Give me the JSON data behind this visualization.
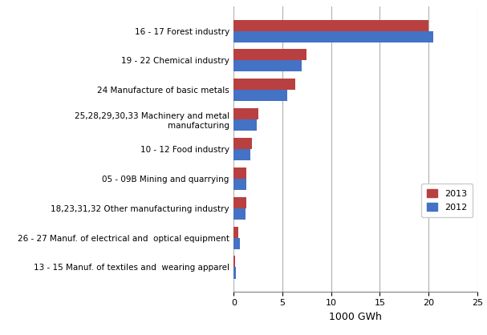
{
  "categories": [
    "16 - 17 Forest industry",
    "19 - 22 Chemical industry",
    "24 Manufacture of basic metals",
    "25,28,29,30,33 Machinery and metal\nmanufacturing",
    "10 - 12 Food industry",
    "05 - 09B Mining and quarrying",
    "18,23,31,32 Other manufacturing industry",
    "26 - 27 Manuf. of electrical and  optical equipment",
    "13 - 15 Manuf. of textiles and  wearing apparel"
  ],
  "values_2013": [
    20.0,
    7.5,
    6.3,
    2.5,
    1.9,
    1.3,
    1.3,
    0.5,
    0.15
  ],
  "values_2012": [
    20.5,
    7.0,
    5.5,
    2.4,
    1.7,
    1.3,
    1.2,
    0.6,
    0.2
  ],
  "color_2013": "#b94040",
  "color_2012": "#4472c4",
  "xlabel": "1000 GWh",
  "xlim": [
    0,
    25
  ],
  "xticks": [
    0,
    5,
    10,
    15,
    20,
    25
  ],
  "legend_labels": [
    "2013",
    "2012"
  ],
  "bar_height": 0.38,
  "background_color": "#ffffff",
  "grid_color": "#b0b0b0"
}
